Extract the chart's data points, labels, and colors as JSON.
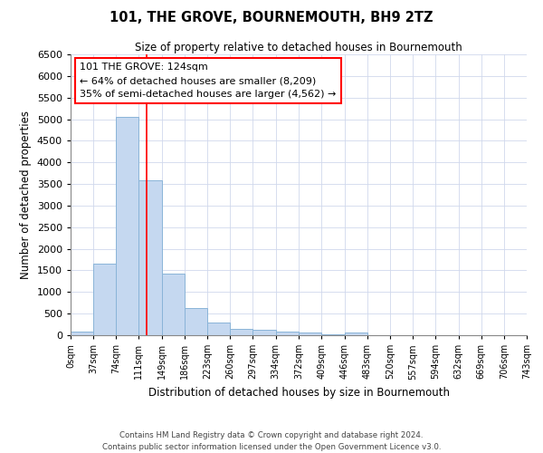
{
  "title": "101, THE GROVE, BOURNEMOUTH, BH9 2TZ",
  "subtitle": "Size of property relative to detached houses in Bournemouth",
  "xlabel": "Distribution of detached houses by size in Bournemouth",
  "ylabel": "Number of detached properties",
  "bar_color": "#c5d8f0",
  "bar_edge_color": "#8ab4d8",
  "vline_color": "red",
  "vline_x": 124,
  "bins": [
    0,
    37,
    74,
    111,
    149,
    186,
    223,
    260,
    297,
    334,
    372,
    409,
    446,
    483,
    520,
    557,
    594,
    632,
    669,
    706,
    743
  ],
  "counts": [
    75,
    1650,
    5060,
    3580,
    1420,
    620,
    290,
    155,
    120,
    80,
    55,
    30,
    65,
    0,
    0,
    0,
    0,
    0,
    0,
    0
  ],
  "ylim": [
    0,
    6500
  ],
  "yticks": [
    0,
    500,
    1000,
    1500,
    2000,
    2500,
    3000,
    3500,
    4000,
    4500,
    5000,
    5500,
    6000,
    6500
  ],
  "annotation_box_text": "101 THE GROVE: 124sqm\n← 64% of detached houses are smaller (8,209)\n35% of semi-detached houses are larger (4,562) →",
  "footer_line1": "Contains HM Land Registry data © Crown copyright and database right 2024.",
  "footer_line2": "Contains public sector information licensed under the Open Government Licence v3.0.",
  "bg_color": "#ffffff",
  "grid_color": "#d0d8ec",
  "tick_labels": [
    "0sqm",
    "37sqm",
    "74sqm",
    "111sqm",
    "149sqm",
    "186sqm",
    "223sqm",
    "260sqm",
    "297sqm",
    "334sqm",
    "372sqm",
    "409sqm",
    "446sqm",
    "483sqm",
    "520sqm",
    "557sqm",
    "594sqm",
    "632sqm",
    "669sqm",
    "706sqm",
    "743sqm"
  ]
}
